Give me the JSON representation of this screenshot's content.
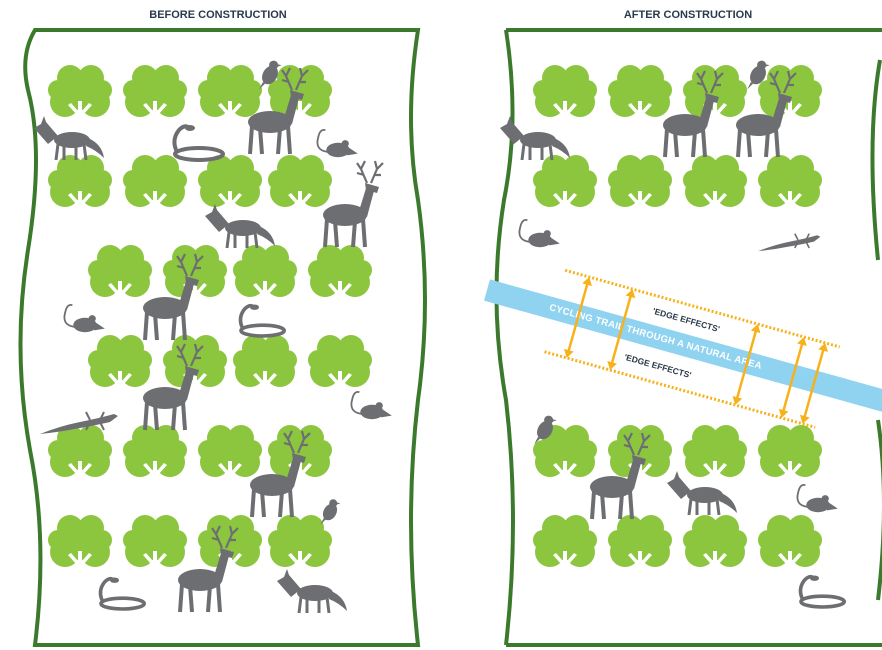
{
  "panels": [
    {
      "title": "BEFORE CONSTRUCTION"
    },
    {
      "title": "AFTER CONSTRUCTION",
      "trail": {
        "label": "CYCLING TRAIL THROUGH A NATURAL AREA",
        "edge_top": "'EDGE EFFECTS'",
        "edge_bottom": "'EDGE EFFECTS'"
      }
    }
  ]
}
